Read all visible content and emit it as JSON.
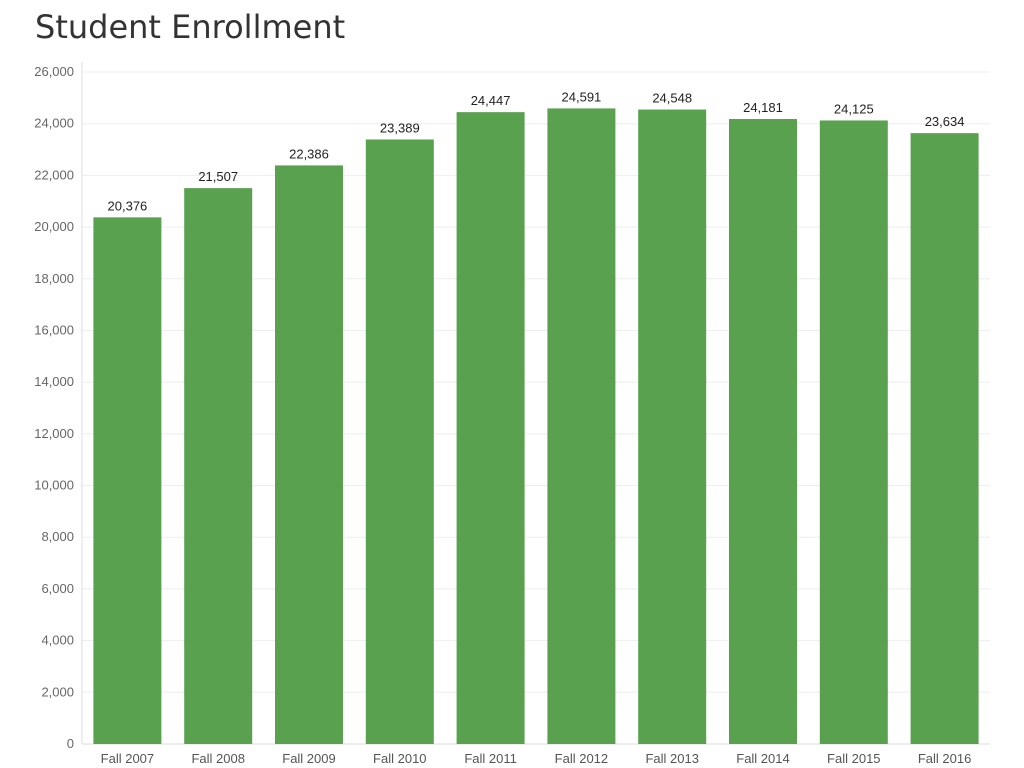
{
  "chart_data": {
    "type": "bar",
    "title": "Student Enrollment",
    "xlabel": "",
    "ylabel": "",
    "categories": [
      "Fall 2007",
      "Fall 2008",
      "Fall 2009",
      "Fall 2010",
      "Fall 2011",
      "Fall 2012",
      "Fall 2013",
      "Fall 2014",
      "Fall 2015",
      "Fall 2016"
    ],
    "values": [
      20376,
      21507,
      22386,
      23389,
      24447,
      24591,
      24548,
      24181,
      24125,
      23634
    ],
    "value_labels": [
      "20,376",
      "21,507",
      "22,386",
      "23,389",
      "24,447",
      "24,591",
      "24,548",
      "24,181",
      "24,125",
      "23,634"
    ],
    "ylim": [
      0,
      26000
    ],
    "yticks": [
      0,
      2000,
      4000,
      6000,
      8000,
      10000,
      12000,
      14000,
      16000,
      18000,
      20000,
      22000,
      24000,
      26000
    ],
    "ytick_labels": [
      "0",
      "2,000",
      "4,000",
      "6,000",
      "8,000",
      "10,000",
      "12,000",
      "14,000",
      "16,000",
      "18,000",
      "20,000",
      "22,000",
      "24,000",
      "26,000"
    ],
    "grid": true,
    "legend": "none",
    "colors": {
      "bar": "#59a14f",
      "grid": "#eeeeee",
      "axis": "#dddddd"
    }
  }
}
